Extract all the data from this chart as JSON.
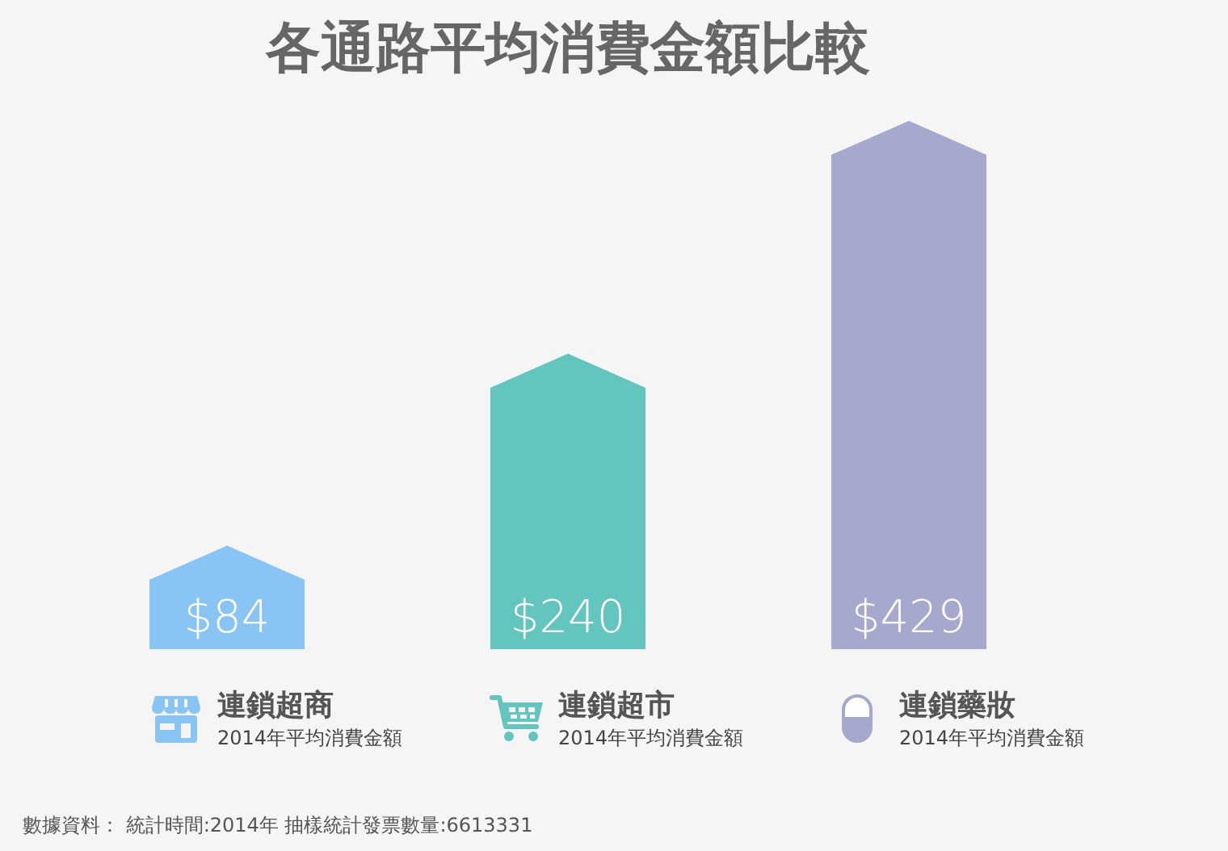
{
  "chart_data": {
    "type": "bar",
    "title": "各通路平均消費金額比較",
    "categories": [
      "連鎖超商\n2014年平均消費金額",
      "連鎖超市\n2014年平均消費金額",
      "連鎖藥妝\n2014年平均消費金額"
    ],
    "values": [
      84,
      240,
      429
    ],
    "colors": [
      "#88c4f4",
      "#62c6be",
      "#a6a8cd"
    ],
    "value_labels": [
      "$84",
      "$240",
      "$429"
    ],
    "annotations": [
      "數據資料： 統計時間:2014年 抽樣統計發票數量:6613331"
    ]
  }
}
